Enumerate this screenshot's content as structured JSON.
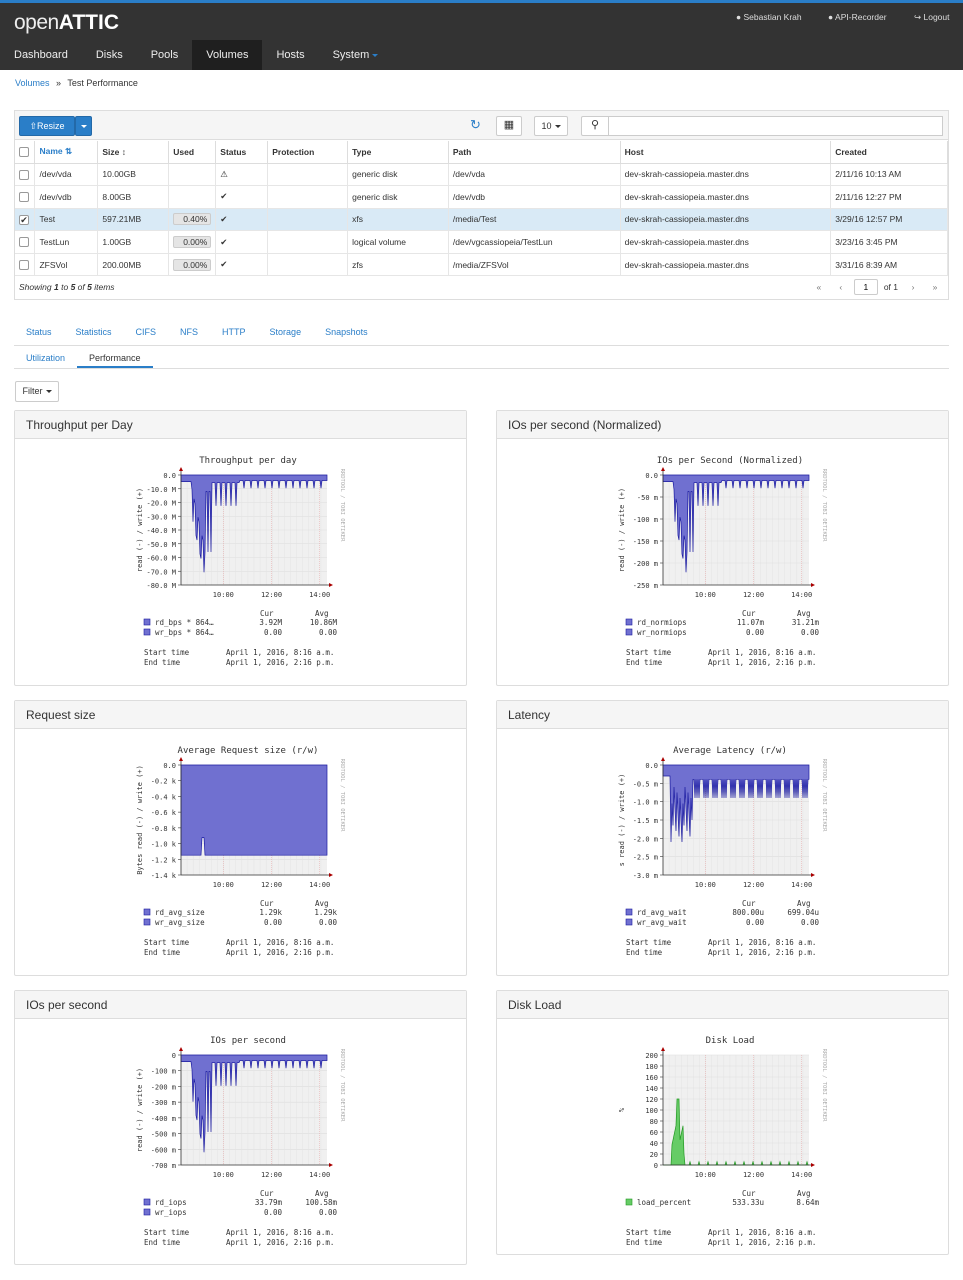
{
  "app": {
    "logo_light": "open",
    "logo_bold": "ATTIC"
  },
  "user": {
    "name": "Sebastian Krah",
    "api_recorder": "API-Recorder",
    "logout": "Logout"
  },
  "nav": [
    {
      "label": "Dashboard",
      "active": false
    },
    {
      "label": "Disks",
      "active": false
    },
    {
      "label": "Pools",
      "active": false
    },
    {
      "label": "Volumes",
      "active": true
    },
    {
      "label": "Hosts",
      "active": false
    },
    {
      "label": "System",
      "active": false,
      "dropdown": true
    }
  ],
  "breadcrumb": {
    "parent": "Volumes",
    "sep": "»",
    "current": "Test Performance"
  },
  "toolbar": {
    "resize_label": "Resize",
    "page_size": "10",
    "search_placeholder": ""
  },
  "table": {
    "columns": [
      "Name",
      "Size",
      "Used",
      "Status",
      "Protection",
      "Type",
      "Path",
      "Host",
      "Created"
    ],
    "rows": [
      {
        "checked": false,
        "name": "/dev/vda",
        "size": "10.00GB",
        "used": "",
        "status": "warning",
        "protection": "",
        "type": "generic disk",
        "path": "/dev/vda",
        "host": "dev-skrah-cassiopeia.master.dns",
        "created": "2/11/16 10:13 AM"
      },
      {
        "checked": false,
        "name": "/dev/vdb",
        "size": "8.00GB",
        "used": "",
        "status": "ok",
        "protection": "",
        "type": "generic disk",
        "path": "/dev/vdb",
        "host": "dev-skrah-cassiopeia.master.dns",
        "created": "2/11/16 12:27 PM"
      },
      {
        "checked": true,
        "name": "Test",
        "size": "597.21MB",
        "used": "0.40%",
        "status": "ok",
        "protection": "",
        "type": "xfs",
        "path": "/media/Test",
        "host": "dev-skrah-cassiopeia.master.dns",
        "created": "3/29/16 12:57 PM"
      },
      {
        "checked": false,
        "name": "TestLun",
        "size": "1.00GB",
        "used": "0.00%",
        "status": "ok",
        "protection": "",
        "type": "logical volume",
        "path": "/dev/vgcassiopeia/TestLun",
        "host": "dev-skrah-cassiopeia.master.dns",
        "created": "3/23/16 3:45 PM"
      },
      {
        "checked": false,
        "name": "ZFSVol",
        "size": "200.00MB",
        "used": "0.00%",
        "status": "ok",
        "protection": "",
        "type": "zfs",
        "path": "/media/ZFSVol",
        "host": "dev-skrah-cassiopeia.master.dns",
        "created": "3/31/16 8:39 AM"
      }
    ],
    "footer": {
      "showing": "Showing",
      "from": "1",
      "to_word": "to",
      "to": "5",
      "of_word": "of",
      "total": "5",
      "items": "items"
    },
    "pager": {
      "page": "1",
      "of_label": "of 1"
    }
  },
  "detail_tabs": [
    "Status",
    "Statistics",
    "CIFS",
    "NFS",
    "HTTP",
    "Storage",
    "Snapshots"
  ],
  "sub_tabs": [
    {
      "label": "Utilization",
      "active": false
    },
    {
      "label": "Performance",
      "active": true
    }
  ],
  "filter_label": "Filter",
  "side_text": "RRDTOOL / TOBI OETIKER",
  "charts": [
    {
      "panel": "Throughput per Day",
      "title": "Throughput per day",
      "ylabel": "read (-) / write (+)",
      "yticks": [
        "0.0",
        "-10.0 M",
        "-20.0 M",
        "-30.0 M",
        "-40.0 M",
        "-50.0 M",
        "-60.0 M",
        "-70.0 M",
        "-80.0 M"
      ],
      "xticks": [
        "10:00",
        "12:00",
        "14:00"
      ],
      "legend": [
        {
          "name": "rd_bps * 864…",
          "cur": "3.92M",
          "avg": "10.86M"
        },
        {
          "name": "wr_bps * 864…",
          "cur": "0.00",
          "avg": "0.00"
        }
      ],
      "start": "April 1, 2016, 8:16 a.m.",
      "end": "April 1, 2016, 2:16 p.m.",
      "color": "#7070d0",
      "stroke": "#1a1aa0",
      "kind": "neg1"
    },
    {
      "panel": "IOs per second (Normalized)",
      "title": "IOs per Second (Normalized)",
      "ylabel": "read (-) / write (+)",
      "yticks": [
        "0.0",
        "-50 m",
        "-100 m",
        "-150 m",
        "-200 m",
        "-250 m"
      ],
      "xticks": [
        "10:00",
        "12:00",
        "14:00"
      ],
      "legend": [
        {
          "name": "rd_normiops",
          "cur": "11.07m",
          "avg": "31.21m"
        },
        {
          "name": "wr_normiops",
          "cur": "0.00",
          "avg": "0.00"
        }
      ],
      "start": "April 1, 2016, 8:16 a.m.",
      "end": "April 1, 2016, 2:16 p.m.",
      "color": "#7070d0",
      "stroke": "#1a1aa0",
      "kind": "neg2"
    },
    {
      "panel": "Request size",
      "title": "Average Request size (r/w)",
      "ylabel": "Bytes read (-) / write (+)",
      "yticks": [
        "0.0",
        "-0.2 k",
        "-0.4 k",
        "-0.6 k",
        "-0.8 k",
        "-1.0 k",
        "-1.2 k",
        "-1.4 k"
      ],
      "xticks": [
        "10:00",
        "12:00",
        "14:00"
      ],
      "legend": [
        {
          "name": "rd_avg_size",
          "cur": "1.29k",
          "avg": "1.29k"
        },
        {
          "name": "wr_avg_size",
          "cur": "0.00",
          "avg": "0.00"
        }
      ],
      "start": "April 1, 2016, 8:16 a.m.",
      "end": "April 1, 2016, 2:16 p.m.",
      "color": "#7070d0",
      "stroke": "#1a1aa0",
      "kind": "size"
    },
    {
      "panel": "Latency",
      "title": "Average Latency (r/w)",
      "ylabel": "s read (-) / write (+)",
      "yticks": [
        "0.0",
        "-0.5 m",
        "-1.0 m",
        "-1.5 m",
        "-2.0 m",
        "-2.5 m",
        "-3.0 m"
      ],
      "xticks": [
        "10:00",
        "12:00",
        "14:00"
      ],
      "legend": [
        {
          "name": "rd_avg_wait",
          "cur": "800.00u",
          "avg": "699.04u"
        },
        {
          "name": "wr_avg_wait",
          "cur": "0.00",
          "avg": "0.00"
        }
      ],
      "start": "April 1, 2016, 8:16 a.m.",
      "end": "April 1, 2016, 2:16 p.m.",
      "color": "#7070d0",
      "stroke": "#1a1aa0",
      "kind": "lat"
    },
    {
      "panel": "IOs per second",
      "title": "IOs per second",
      "ylabel": "read (-) / write (+)",
      "yticks": [
        "0",
        "-100 m",
        "-200 m",
        "-300 m",
        "-400 m",
        "-500 m",
        "-600 m",
        "-700 m"
      ],
      "xticks": [
        "10:00",
        "12:00",
        "14:00"
      ],
      "legend": [
        {
          "name": "rd_iops",
          "cur": "33.79m",
          "avg": "100.58m"
        },
        {
          "name": "wr_iops",
          "cur": "0.00",
          "avg": "0.00"
        }
      ],
      "start": "April 1, 2016, 8:16 a.m.",
      "end": "April 1, 2016, 2:16 p.m.",
      "color": "#7070d0",
      "stroke": "#1a1aa0",
      "kind": "neg1"
    },
    {
      "panel": "Disk Load",
      "title": "Disk Load",
      "ylabel": "%",
      "yticks": [
        "200",
        "180",
        "160",
        "140",
        "120",
        "100",
        "80",
        "60",
        "40",
        "20",
        "0"
      ],
      "xticks": [
        "10:00",
        "12:00",
        "14:00"
      ],
      "legend": [
        {
          "name": "load_percent",
          "cur": "533.33u",
          "avg": "8.64m"
        }
      ],
      "start": "April 1, 2016, 8:16 a.m.",
      "end": "April 1, 2016, 2:16 p.m.",
      "color": "#66cc66",
      "stroke": "#229922",
      "kind": "load"
    }
  ],
  "labels": {
    "cur": "Cur",
    "avg": "Avg",
    "start_time": "Start time",
    "end_time": "End time"
  }
}
